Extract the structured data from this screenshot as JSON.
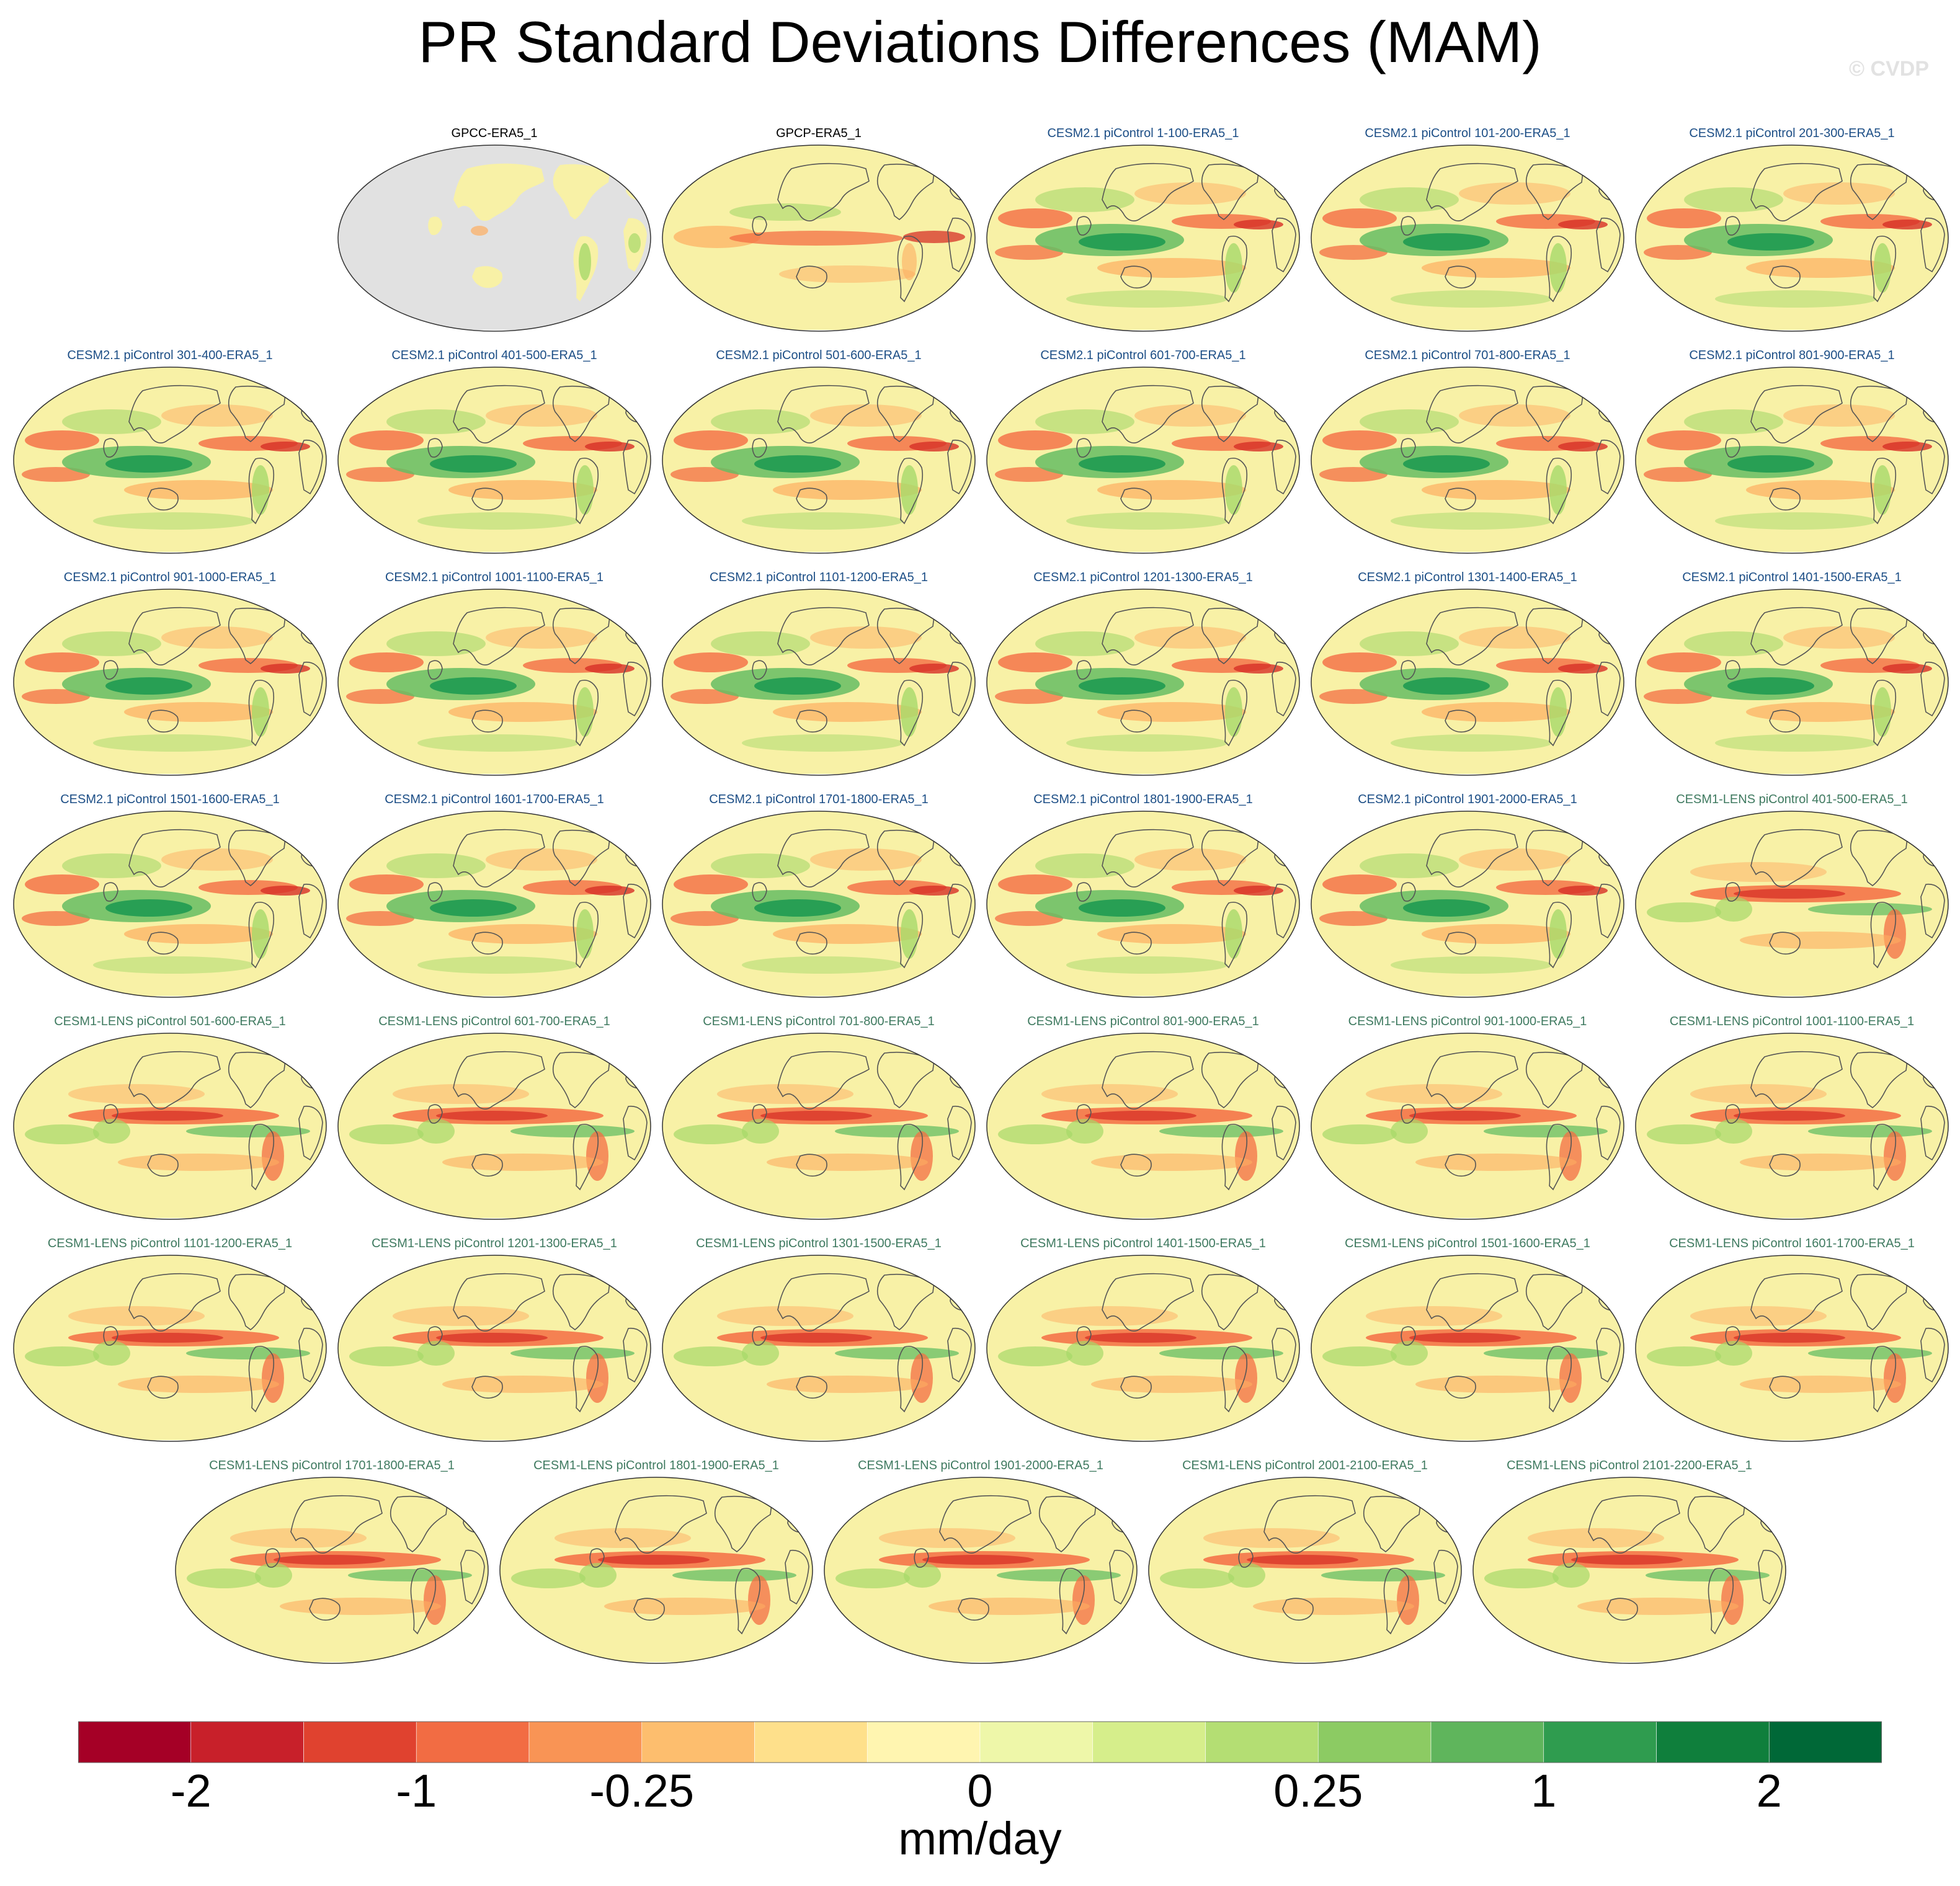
{
  "title": "PR Standard Deviations Differences (MAM)",
  "watermark": "© CVDP",
  "panels": [
    {
      "label": "GPCC-ERA5_1",
      "group": "obs",
      "pattern": "gpcc"
    },
    {
      "label": "GPCP-ERA5_1",
      "group": "obs",
      "pattern": "gpcp"
    },
    {
      "label": "CESM2.1 piControl 1-100-ERA5_1",
      "group": "cesm2",
      "pattern": "cesm2"
    },
    {
      "label": "CESM2.1 piControl 101-200-ERA5_1",
      "group": "cesm2",
      "pattern": "cesm2"
    },
    {
      "label": "CESM2.1 piControl 201-300-ERA5_1",
      "group": "cesm2",
      "pattern": "cesm2"
    },
    {
      "label": "CESM2.1 piControl 301-400-ERA5_1",
      "group": "cesm2",
      "pattern": "cesm2"
    },
    {
      "label": "CESM2.1 piControl 401-500-ERA5_1",
      "group": "cesm2",
      "pattern": "cesm2"
    },
    {
      "label": "CESM2.1 piControl 501-600-ERA5_1",
      "group": "cesm2",
      "pattern": "cesm2"
    },
    {
      "label": "CESM2.1 piControl 601-700-ERA5_1",
      "group": "cesm2",
      "pattern": "cesm2"
    },
    {
      "label": "CESM2.1 piControl 701-800-ERA5_1",
      "group": "cesm2",
      "pattern": "cesm2"
    },
    {
      "label": "CESM2.1 piControl 801-900-ERA5_1",
      "group": "cesm2",
      "pattern": "cesm2"
    },
    {
      "label": "CESM2.1 piControl 901-1000-ERA5_1",
      "group": "cesm2",
      "pattern": "cesm2"
    },
    {
      "label": "CESM2.1 piControl 1001-1100-ERA5_1",
      "group": "cesm2",
      "pattern": "cesm2"
    },
    {
      "label": "CESM2.1 piControl 1101-1200-ERA5_1",
      "group": "cesm2",
      "pattern": "cesm2"
    },
    {
      "label": "CESM2.1 piControl 1201-1300-ERA5_1",
      "group": "cesm2",
      "pattern": "cesm2"
    },
    {
      "label": "CESM2.1 piControl 1301-1400-ERA5_1",
      "group": "cesm2",
      "pattern": "cesm2"
    },
    {
      "label": "CESM2.1 piControl 1401-1500-ERA5_1",
      "group": "cesm2",
      "pattern": "cesm2"
    },
    {
      "label": "CESM2.1 piControl 1501-1600-ERA5_1",
      "group": "cesm2",
      "pattern": "cesm2"
    },
    {
      "label": "CESM2.1 piControl 1601-1700-ERA5_1",
      "group": "cesm2",
      "pattern": "cesm2"
    },
    {
      "label": "CESM2.1 piControl 1701-1800-ERA5_1",
      "group": "cesm2",
      "pattern": "cesm2"
    },
    {
      "label": "CESM2.1 piControl 1801-1900-ERA5_1",
      "group": "cesm2",
      "pattern": "cesm2"
    },
    {
      "label": "CESM2.1 piControl 1901-2000-ERA5_1",
      "group": "cesm2",
      "pattern": "cesm2"
    },
    {
      "label": "CESM1-LENS piControl 401-500-ERA5_1",
      "group": "cesm1",
      "pattern": "cesm1"
    },
    {
      "label": "CESM1-LENS piControl 501-600-ERA5_1",
      "group": "cesm1",
      "pattern": "cesm1"
    },
    {
      "label": "CESM1-LENS piControl 601-700-ERA5_1",
      "group": "cesm1",
      "pattern": "cesm1"
    },
    {
      "label": "CESM1-LENS piControl 701-800-ERA5_1",
      "group": "cesm1",
      "pattern": "cesm1"
    },
    {
      "label": "CESM1-LENS piControl 801-900-ERA5_1",
      "group": "cesm1",
      "pattern": "cesm1"
    },
    {
      "label": "CESM1-LENS piControl 901-1000-ERA5_1",
      "group": "cesm1",
      "pattern": "cesm1"
    },
    {
      "label": "CESM1-LENS piControl 1001-1100-ERA5_1",
      "group": "cesm1",
      "pattern": "cesm1"
    },
    {
      "label": "CESM1-LENS piControl 1101-1200-ERA5_1",
      "group": "cesm1",
      "pattern": "cesm1"
    },
    {
      "label": "CESM1-LENS piControl 1201-1300-ERA5_1",
      "group": "cesm1",
      "pattern": "cesm1"
    },
    {
      "label": "CESM1-LENS piControl 1301-1500-ERA5_1",
      "group": "cesm1",
      "pattern": "cesm1"
    },
    {
      "label": "CESM1-LENS piControl 1401-1500-ERA5_1",
      "group": "cesm1",
      "pattern": "cesm1"
    },
    {
      "label": "CESM1-LENS piControl 1501-1600-ERA5_1",
      "group": "cesm1",
      "pattern": "cesm1"
    },
    {
      "label": "CESM1-LENS piControl 1601-1700-ERA5_1",
      "group": "cesm1",
      "pattern": "cesm1"
    },
    {
      "label": "CESM1-LENS piControl 1701-1800-ERA5_1",
      "group": "cesm1",
      "pattern": "cesm1"
    },
    {
      "label": "CESM1-LENS piControl 1801-1900-ERA5_1",
      "group": "cesm1",
      "pattern": "cesm1"
    },
    {
      "label": "CESM1-LENS piControl 1901-2000-ERA5_1",
      "group": "cesm1",
      "pattern": "cesm1"
    },
    {
      "label": "CESM1-LENS piControl 2001-2100-ERA5_1",
      "group": "cesm1",
      "pattern": "cesm1"
    },
    {
      "label": "CESM1-LENS piControl 2101-2200-ERA5_1",
      "group": "cesm1",
      "pattern": "cesm1"
    }
  ],
  "colorbar": {
    "colors": [
      "#a50026",
      "#c8202a",
      "#e0422f",
      "#f26c43",
      "#f99455",
      "#fdbe6e",
      "#fee08b",
      "#fff5b0",
      "#eef7a9",
      "#d6ee8b",
      "#b4de73",
      "#8ccb63",
      "#5fb55c",
      "#2f9c4f",
      "#0f7f3c",
      "#006837"
    ],
    "tick_labels": [
      "-2",
      "-1",
      "-0.25",
      "0",
      "0.25",
      "1",
      "2"
    ],
    "tick_boundaries": [
      1,
      3,
      5,
      8,
      11,
      13,
      15
    ],
    "units": "mm/day"
  },
  "palette": {
    "ocean_neutral": "#f8f1a6",
    "land_mask": "#e1e1e1",
    "coast": "#555555",
    "red_strong": "#d73027",
    "red_mid": "#f46d43",
    "orange": "#fdae61",
    "green_light": "#a6d96a",
    "green_mid": "#66bd63",
    "green_dark": "#1a9850"
  }
}
